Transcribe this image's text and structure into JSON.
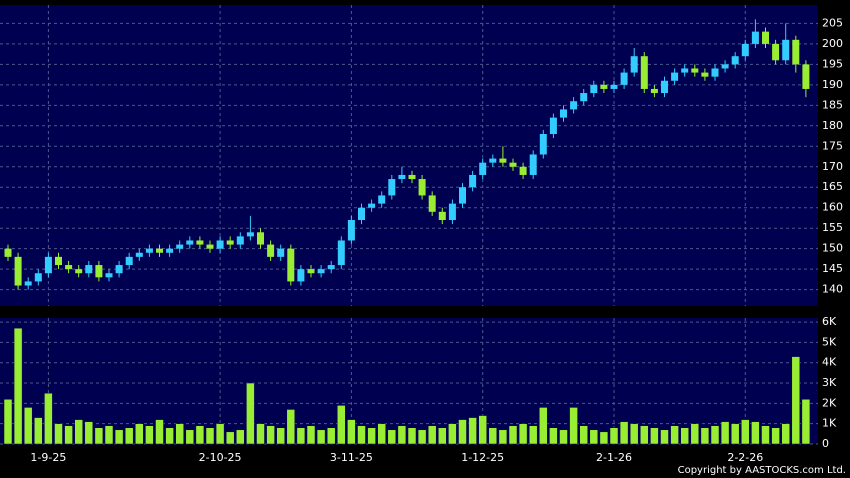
{
  "chart_data": {
    "type": "candlestick",
    "categories": [
      null,
      null,
      null,
      null,
      "1-9-25",
      null,
      null,
      null,
      null,
      null,
      null,
      null,
      null,
      null,
      null,
      null,
      null,
      null,
      null,
      null,
      null,
      "2-10-25",
      null,
      null,
      null,
      null,
      null,
      null,
      null,
      null,
      null,
      null,
      null,
      null,
      "3-11-25",
      null,
      null,
      null,
      null,
      null,
      null,
      null,
      null,
      null,
      null,
      null,
      null,
      "1-12-25",
      null,
      null,
      null,
      null,
      null,
      null,
      null,
      null,
      null,
      null,
      null,
      null,
      "2-1-26",
      null,
      null,
      null,
      null,
      null,
      null,
      null,
      null,
      null,
      null,
      null,
      null,
      "2-2-26",
      null,
      null,
      null,
      null,
      null,
      null
    ],
    "open": [
      150,
      148,
      141,
      142,
      144,
      148,
      146,
      145,
      144,
      146,
      143,
      144,
      146,
      148,
      149,
      150,
      149,
      150,
      151,
      152,
      151,
      150,
      152,
      151,
      153,
      154,
      151,
      148,
      150,
      142,
      145,
      144,
      145,
      146,
      152,
      157,
      160,
      161,
      163,
      167,
      168,
      167,
      163,
      159,
      157,
      161,
      165,
      168,
      171,
      172,
      171,
      170,
      168,
      173,
      178,
      182,
      184,
      186,
      188,
      190,
      189,
      190,
      193,
      197,
      189,
      188,
      191,
      193,
      194,
      193,
      192,
      194,
      195,
      197,
      200,
      203,
      200,
      196,
      201,
      195
    ],
    "high": [
      151,
      149,
      143,
      145,
      149,
      149,
      147,
      146,
      147,
      147,
      145,
      147,
      149,
      150,
      151,
      151,
      151,
      152,
      153,
      153,
      152,
      153,
      153,
      154,
      158,
      155,
      152,
      151,
      151,
      146,
      146,
      146,
      147,
      153,
      158,
      161,
      162,
      164,
      168,
      170,
      169,
      168,
      164,
      160,
      162,
      166,
      169,
      172,
      173,
      175,
      172,
      171,
      174,
      179,
      183,
      185,
      187,
      189,
      191,
      191,
      191,
      194,
      199,
      198,
      190,
      192,
      194,
      195,
      195,
      194,
      195,
      196,
      198,
      201,
      206,
      204,
      201,
      205,
      202,
      196
    ],
    "low": [
      147,
      140,
      140,
      141,
      143,
      145,
      144,
      143,
      143,
      142,
      142,
      143,
      145,
      147,
      148,
      148,
      148,
      149,
      150,
      150,
      149,
      149,
      150,
      150,
      152,
      150,
      147,
      147,
      141,
      141,
      143,
      143,
      144,
      145,
      151,
      156,
      159,
      160,
      162,
      166,
      166,
      162,
      158,
      156,
      156,
      160,
      164,
      167,
      170,
      170,
      169,
      167,
      167,
      172,
      177,
      181,
      183,
      185,
      187,
      188,
      188,
      189,
      192,
      188,
      187,
      187,
      190,
      192,
      192,
      191,
      191,
      193,
      194,
      196,
      199,
      199,
      195,
      195,
      193,
      187
    ],
    "close": [
      148,
      141,
      142,
      144,
      148,
      146,
      145,
      144,
      146,
      143,
      144,
      146,
      148,
      149,
      150,
      149,
      150,
      151,
      152,
      151,
      150,
      152,
      151,
      153,
      154,
      151,
      148,
      150,
      142,
      145,
      144,
      145,
      146,
      152,
      157,
      160,
      161,
      163,
      167,
      168,
      167,
      163,
      159,
      157,
      161,
      165,
      168,
      171,
      172,
      171,
      170,
      168,
      173,
      178,
      182,
      184,
      186,
      188,
      190,
      189,
      190,
      193,
      197,
      189,
      188,
      191,
      193,
      194,
      193,
      192,
      194,
      195,
      197,
      200,
      203,
      200,
      196,
      201,
      195,
      189
    ],
    "volume": [
      2200,
      5700,
      1800,
      1300,
      2500,
      1000,
      900,
      1200,
      1100,
      800,
      900,
      700,
      800,
      1000,
      900,
      1200,
      800,
      1000,
      700,
      900,
      800,
      1000,
      600,
      700,
      3000,
      1000,
      900,
      800,
      1700,
      800,
      900,
      700,
      800,
      1900,
      1200,
      900,
      800,
      1000,
      700,
      900,
      800,
      700,
      900,
      800,
      1000,
      1200,
      1300,
      1400,
      800,
      700,
      900,
      1000,
      900,
      1800,
      800,
      700,
      1800,
      900,
      700,
      600,
      800,
      1100,
      1000,
      900,
      800,
      700,
      900,
      800,
      1000,
      800,
      900,
      1100,
      1000,
      1200,
      1100,
      900,
      800,
      1000,
      4300,
      2200
    ],
    "up_color": "#33ccff",
    "down_color": "#99ee33",
    "volume_color": "#99ee33",
    "ylim": [
      136,
      209.5
    ],
    "yticks": [
      140,
      145,
      150,
      155,
      160,
      165,
      170,
      175,
      180,
      185,
      190,
      195,
      200,
      205
    ],
    "y2lim": [
      0,
      6200
    ],
    "y2ticks": [
      {
        "value": 0,
        "label": "0"
      },
      {
        "value": 1000,
        "label": "1K"
      },
      {
        "value": 2000,
        "label": "2K"
      },
      {
        "value": 3000,
        "label": "3K"
      },
      {
        "value": 4000,
        "label": "4K"
      },
      {
        "value": 5000,
        "label": "5K"
      },
      {
        "value": 6000,
        "label": "6K"
      }
    ],
    "grid": true,
    "copyright": "Copyright by AASTOCKS.com Ltd."
  }
}
